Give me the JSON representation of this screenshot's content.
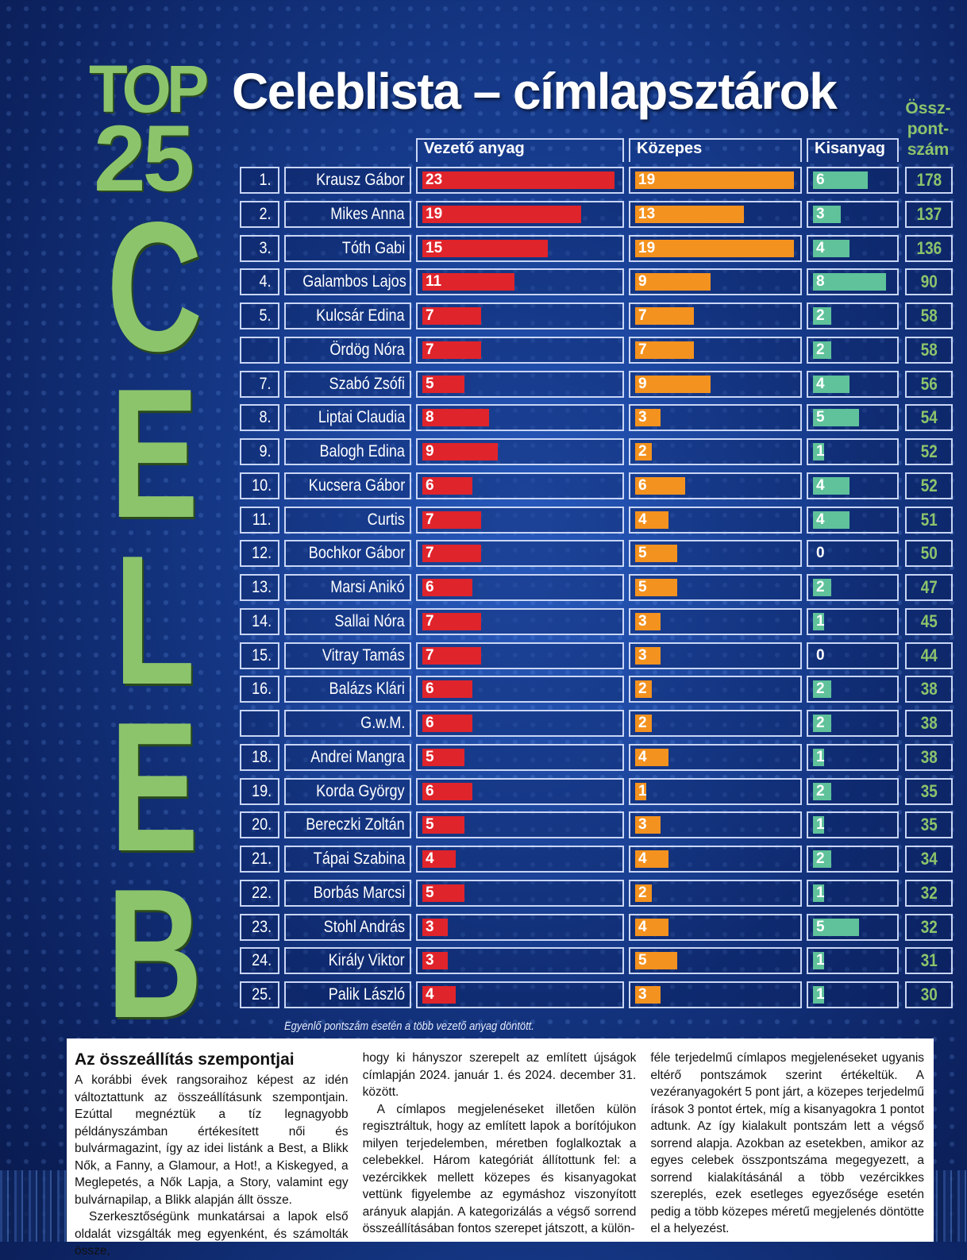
{
  "title": "Celeblista – címlapsztárok",
  "badge": {
    "top": "TOP",
    "num": "25",
    "letters": [
      "C",
      "E",
      "L",
      "E",
      "B"
    ]
  },
  "columns": {
    "lead": "Vezető anyag",
    "mid": "Közepes",
    "small": "Kisanyag",
    "total": [
      "Össz-",
      "pont-",
      "szám"
    ]
  },
  "colors": {
    "lead": "#e0242b",
    "mid": "#f4921f",
    "small": "#5fc29a",
    "accent": "#8cc46c"
  },
  "rows": [
    {
      "rank": "1.",
      "name": "Krausz Gábor",
      "lead": "23",
      "mid": "19",
      "small": "6",
      "total": "178"
    },
    {
      "rank": "2.",
      "name": "Mikes Anna",
      "lead": "19",
      "mid": "13",
      "small": "3",
      "total": "137"
    },
    {
      "rank": "3.",
      "name": "Tóth Gabi",
      "lead": "15",
      "mid": "19",
      "small": "4",
      "total": "136"
    },
    {
      "rank": "4.",
      "name": "Galambos Lajos",
      "lead": "11",
      "mid": "9",
      "small": "8",
      "total": "90"
    },
    {
      "rank": "5.",
      "name": "Kulcsár Edina",
      "lead": "7",
      "mid": "7",
      "small": "2",
      "total": "58"
    },
    {
      "rank": "",
      "name": "Ördög Nóra",
      "lead": "7",
      "mid": "7",
      "small": "2",
      "total": "58"
    },
    {
      "rank": "7.",
      "name": "Szabó Zsófi",
      "lead": "5",
      "mid": "9",
      "small": "4",
      "total": "56"
    },
    {
      "rank": "8.",
      "name": "Liptai Claudia",
      "lead": "8",
      "mid": "3",
      "small": "5",
      "total": "54"
    },
    {
      "rank": "9.",
      "name": "Balogh Edina",
      "lead": "9",
      "mid": "2",
      "small": "1",
      "total": "52"
    },
    {
      "rank": "10.",
      "name": "Kucsera Gábor",
      "lead": "6",
      "mid": "6",
      "small": "4",
      "total": "52"
    },
    {
      "rank": "11.",
      "name": "Curtis",
      "lead": "7",
      "mid": "4",
      "small": "4",
      "total": "51"
    },
    {
      "rank": "12.",
      "name": "Bochkor Gábor",
      "lead": "7",
      "mid": "5",
      "small": "0",
      "total": "50"
    },
    {
      "rank": "13.",
      "name": "Marsi Anikó",
      "lead": "6",
      "mid": "5",
      "small": "2",
      "total": "47"
    },
    {
      "rank": "14.",
      "name": "Sallai Nóra",
      "lead": "7",
      "mid": "3",
      "small": "1",
      "total": "45"
    },
    {
      "rank": "15.",
      "name": "Vitray Tamás",
      "lead": "7",
      "mid": "3",
      "small": "0",
      "total": "44"
    },
    {
      "rank": "16.",
      "name": "Balázs Klári",
      "lead": "6",
      "mid": "2",
      "small": "2",
      "total": "38"
    },
    {
      "rank": "",
      "name": "G.w.M.",
      "lead": "6",
      "mid": "2",
      "small": "2",
      "total": "38"
    },
    {
      "rank": "18.",
      "name": "Andrei Mangra",
      "lead": "5",
      "mid": "4",
      "small": "1",
      "total": "38"
    },
    {
      "rank": "19.",
      "name": "Korda György",
      "lead": "6",
      "mid": "1",
      "small": "2",
      "total": "35"
    },
    {
      "rank": "20.",
      "name": "Bereczki Zoltán",
      "lead": "5",
      "mid": "3",
      "small": "1",
      "total": "35"
    },
    {
      "rank": "21.",
      "name": "Tápai Szabina",
      "lead": "4",
      "mid": "4",
      "small": "2",
      "total": "34"
    },
    {
      "rank": "22.",
      "name": "Borbás Marcsi",
      "lead": "5",
      "mid": "2",
      "small": "1",
      "total": "32"
    },
    {
      "rank": "23.",
      "name": "Stohl András",
      "lead": "3",
      "mid": "4",
      "small": "5",
      "total": "32"
    },
    {
      "rank": "24.",
      "name": "Király Viktor",
      "lead": "3",
      "mid": "5",
      "small": "1",
      "total": "31"
    },
    {
      "rank": "25.",
      "name": "Palik László",
      "lead": "4",
      "mid": "3",
      "small": "1",
      "total": "30"
    }
  ],
  "footnote": "Egyenlő pontszám esetén a több vezető anyag döntött.",
  "article": {
    "heading": "Az összeállítás szempontjai",
    "p1": "A korábbi évek rangsoraihoz képest az idén változtattunk az összeállításunk szempontjain. Ezúttal megnéztük a tíz legnagyobb példányszámban értékesített női és bulvármagazint, így az idei listánk a Best, a Blikk Nők, a Fanny, a Glamour, a Hot!, a Kiskegyed, a Meglepetés, a Nők Lapja, a Story, valamint egy bulvárnapilap, a Blikk alapján állt össze.",
    "p2": "Szerkesztőségünk munkatársai a lapok első oldalát vizsgálták meg egyenként, és számolták össze,",
    "p3": "hogy ki hányszor szerepelt az említett újságok címlapján 2024. január 1. és 2024. december 31. között.",
    "p4": "A címlapos megjelenéseket illetően külön regisztráltuk, hogy az említett lapok a borítójukon milyen terjedelemben, méretben foglalkoztak a celebekkel. Három kategóriát állítottunk fel: a vezércikkek mellett közepes és kisanyagokat vettünk figyelembe az egymáshoz viszonyított arányuk alapján. A kategorizálás a végső sorrend összeállításában fontos szerepet játszott, a külön-",
    "p5": "féle terjedelmű címlapos megjelenéseket ugyanis eltérő pontszámok szerint értékeltük. A vezéranyagokért 5 pont járt, a közepes terjedelmű írások 3 pontot értek, míg a kisanyagokra 1 pontot adtunk. Az így kialakult pontszám lett a végső sorrend alapja. Azokban az esetekben, amikor az egyes celebek összpontszáma megegyezett, a sorrend kialakításánál a több vezércikkes szereplés, ezek esetleges egyezősége esetén pedig a több közepes méretű megjelenés döntötte el a helyezést."
  }
}
